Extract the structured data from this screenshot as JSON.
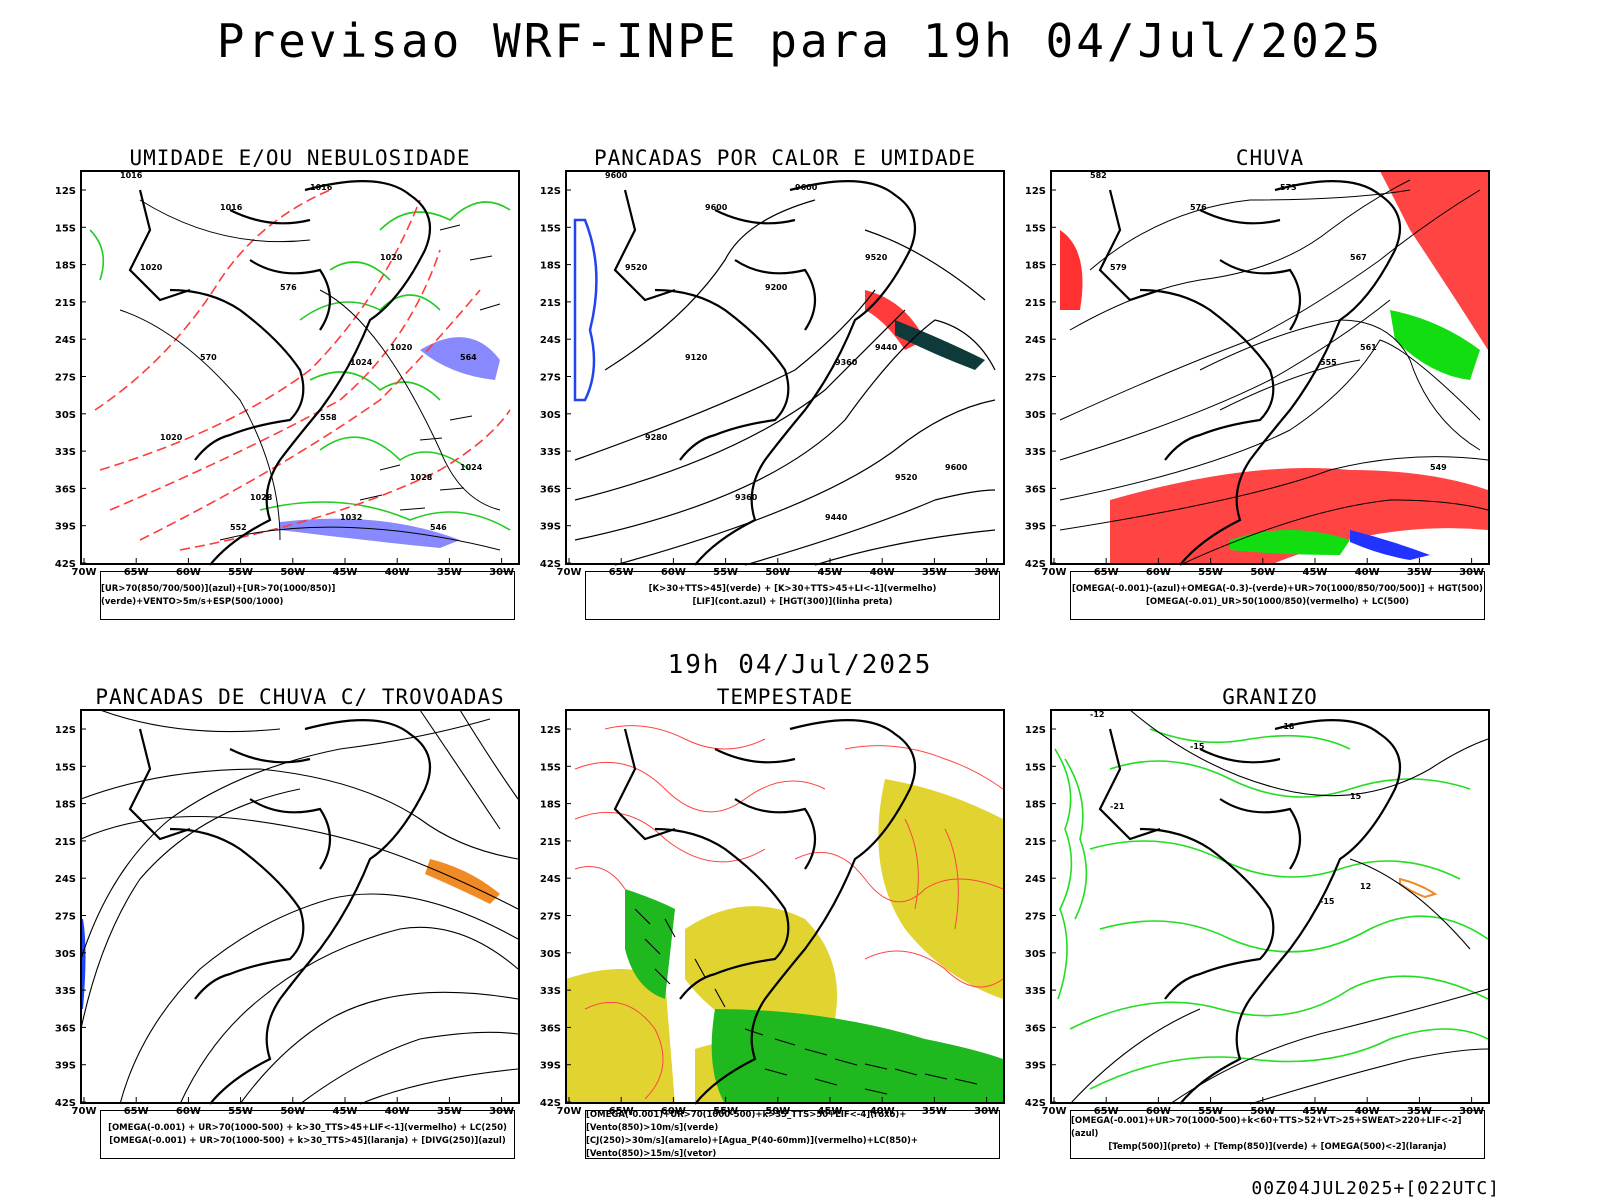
{
  "header": {
    "title": "Previsao WRF-INPE  para 19h 04/Jul/2025"
  },
  "subheader": {
    "text": "19h 04/Jul/2025"
  },
  "footer": {
    "text": "00Z04JUL2025+[022UTC]"
  },
  "axes": {
    "lat_labels": [
      "12S",
      "15S",
      "18S",
      "21S",
      "24S",
      "27S",
      "30S",
      "33S",
      "36S",
      "39S",
      "42S"
    ],
    "lon_labels": [
      "70W",
      "65W",
      "60W",
      "55W",
      "50W",
      "45W",
      "40W",
      "35W",
      "30W"
    ]
  },
  "panels": [
    {
      "title": "UMIDADE E/OU NEBULOSIDADE",
      "legend": [
        "[UR>70(850/700/500)](azul)+[UR>70(1000/850)](verde)+VENTO>5m/s+ESP(500/1000)"
      ],
      "contour_labels": [
        "1016",
        "1016",
        "1016",
        "1020",
        "1020",
        "1020",
        "1024",
        "1024",
        "1028",
        "1032",
        "1028",
        "1020",
        "576",
        "570",
        "564",
        "558",
        "552",
        "546"
      ],
      "colors": {
        "contour_black": "#000000",
        "thickness_red": "#ff3b3b",
        "humid_green": "#22cc22",
        "humid_blue": "#6b6bff"
      }
    },
    {
      "title": "PANCADAS POR CALOR E UMIDADE",
      "legend": [
        "[K>30+TTS>45](verde) + [K>30+TTS>45+LI<-1](vermelho)",
        "[LIF](cont.azul) + [HGT(300)](linha preta)"
      ],
      "contour_labels": [
        "9600",
        "9600",
        "9600",
        "9520",
        "9520",
        "9440",
        "9360",
        "9600",
        "9520",
        "9440",
        "9360",
        "9280",
        "9200",
        "9120"
      ],
      "colors": {
        "hgt_black": "#000000",
        "lif_blue": "#2244ee",
        "red": "#ff3b3b",
        "dark_teal": "#0f3a3a"
      }
    },
    {
      "title": "CHUVA",
      "legend": [
        "[OMEGA(-0.001)-(azul)+OMEGA(-0.3)-(verde)+UR>70(1000/850/700/500)] + HGT(500)",
        "[OMEGA(-0.01)_UR>50(1000/850)(vermelho) + LC(500)"
      ],
      "contour_labels": [
        "582",
        "576",
        "573",
        "579",
        "567",
        "561",
        "555",
        "549"
      ],
      "colors": {
        "stream_black": "#000000",
        "rain_red": "#ff3030",
        "green": "#11dd11",
        "blue": "#2233ff"
      }
    },
    {
      "title": "PANCADAS DE CHUVA C/ TROVOADAS",
      "legend": [
        "[OMEGA(-0.001) + UR>70(1000-500) + k>30_TTS>45+LIF<-1](vermelho) + LC(250)",
        "[OMEGA(-0.001) + UR>70(1000-500) + k>30_TTS>45](laranja) + [DIVG(250)](azul)"
      ],
      "contour_labels": [],
      "colors": {
        "stream_black": "#000000",
        "orange": "#f08a24",
        "blue": "#2244ee",
        "red": "#ff3030"
      }
    },
    {
      "title": "TEMPESTADE",
      "legend": [
        "[OMEGA(-0.001)+UR>70(1000-500)+k>35_TTS>50+LIF<-4](roxo)+[Vento(850)>10m/s](verde)",
        "[CJ(250)>30m/s](amarelo)+[Agua_P(40-60mm)](vermelho)+LC(850)+[Vento(850)>15m/s](vetor)"
      ],
      "contour_labels": [],
      "colors": {
        "jet_yellow": "#e2d430",
        "wind_green": "#1fb81f",
        "stream_red": "#ff4444",
        "vector_black": "#000000"
      }
    },
    {
      "title": "GRANIZO",
      "legend": [
        "[OMEGA(-0.001)+UR>70(1000-500)+k<60+TTS>52+VT>25+SWEAT>220+LIF<-2](azul)",
        "[Temp(500)](preto) + [Temp(850)](verde) + [OMEGA(500)<-2](laranja)"
      ],
      "contour_labels": [
        "-12",
        "-15",
        "-18",
        "-21",
        "15",
        "12",
        "-15"
      ],
      "colors": {
        "temp500_black": "#000000",
        "temp850_green": "#22dd22",
        "omega_orange": "#f08a24"
      }
    }
  ]
}
